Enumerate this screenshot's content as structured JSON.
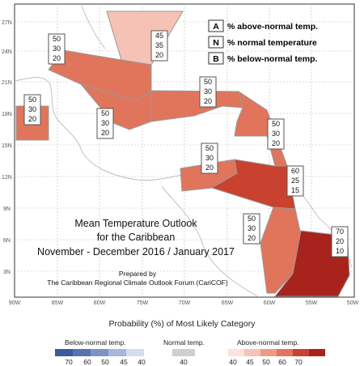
{
  "map": {
    "title_lines": [
      "Mean Temperature Outlook",
      "for the Caribbean",
      "November - December 2016 / January 2017"
    ],
    "prepared_lines": [
      "Prepared by",
      "The Caribbean Regional Climate Outlook Forum (CariCOF)"
    ],
    "lat_ticks": [
      "27N",
      "24N",
      "21N",
      "18N",
      "15N",
      "12N",
      "9N",
      "6N",
      "3N"
    ],
    "lon_ticks": [
      "90W",
      "85W",
      "80W",
      "75W",
      "70W",
      "65W",
      "60W",
      "55W",
      "50W"
    ],
    "key": [
      {
        "letter": "A",
        "text": "% above-normal temp."
      },
      {
        "letter": "N",
        "text": "% normal temperature"
      },
      {
        "letter": "B",
        "text": "% below-normal temp."
      }
    ],
    "colors": {
      "a50": "#e0755c",
      "a45": "#f6c2b6",
      "a60": "#c9422f",
      "a70": "#a8231c",
      "border": "#999999"
    },
    "zones": [
      {
        "name": "bahamas",
        "above": 45,
        "normal": 35,
        "below": 20
      },
      {
        "name": "cuba-jamaica",
        "above": 50,
        "normal": 30,
        "below": 20
      },
      {
        "name": "belize",
        "above": 50,
        "normal": 30,
        "below": 20
      },
      {
        "name": "greater-antilles-south",
        "above": 50,
        "normal": 30,
        "below": 20
      },
      {
        "name": "hispaniola-puerto-rico",
        "above": 50,
        "normal": 30,
        "below": 20
      },
      {
        "name": "lesser-antilles",
        "above": 50,
        "normal": 30,
        "below": 20
      },
      {
        "name": "southern-caribbean",
        "above": 50,
        "normal": 30,
        "below": 20
      },
      {
        "name": "trinidad-venezuela",
        "above": 60,
        "normal": 25,
        "below": 15
      },
      {
        "name": "guyana",
        "above": 50,
        "normal": 30,
        "below": 20
      },
      {
        "name": "suriname-french-guiana",
        "above": 70,
        "normal": 20,
        "below": 10
      }
    ]
  },
  "legend": {
    "title": "Probability (%) of Most Likely Category",
    "below": {
      "label": "Below-normal temp.",
      "ticks": [
        "70",
        "60",
        "50",
        "45",
        "40"
      ],
      "colors": [
        "#3b5a99",
        "#5874b0",
        "#7d93c6",
        "#a7b6dc",
        "#d4dcee"
      ]
    },
    "normal": {
      "label": "Normal temp.",
      "ticks": [
        "40"
      ],
      "color": "#cfcfcf"
    },
    "above": {
      "label": "Above-normal temp.",
      "ticks": [
        "40",
        "45",
        "50",
        "60",
        "70"
      ],
      "colors": [
        "#fde2dc",
        "#f6c2b6",
        "#ee9b86",
        "#e0755c",
        "#c9422f",
        "#a8231c"
      ]
    }
  }
}
